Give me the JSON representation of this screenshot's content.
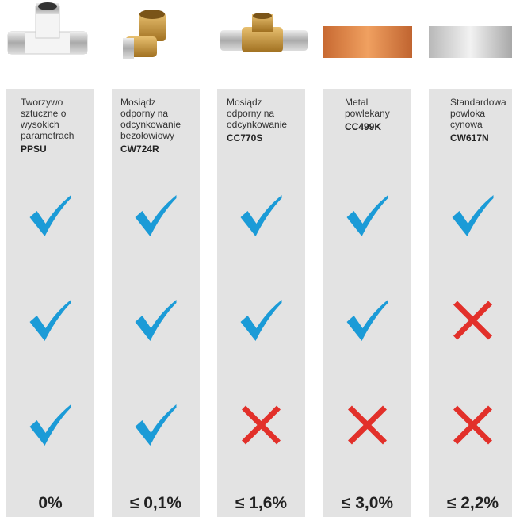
{
  "columns": [
    {
      "description": [
        "Tworzywo",
        "sztuczne o",
        "wysokich",
        "parametrach"
      ],
      "code": "PPSU",
      "checks": [
        true,
        true,
        true
      ],
      "value": "0%"
    },
    {
      "description": [
        "Mosiądz",
        "odporny na",
        "odcynkowanie",
        "bezołowiowy"
      ],
      "code": "CW724R",
      "checks": [
        true,
        true,
        true
      ],
      "value": "≤ 0,1%"
    },
    {
      "description": [
        "Mosiądz",
        "odporny na",
        "odcynkowanie"
      ],
      "code": "CC770S",
      "checks": [
        true,
        true,
        false
      ],
      "value": "≤ 1,6%"
    },
    {
      "description": [
        "Metal",
        "powlekany"
      ],
      "code": "CC499K",
      "checks": [
        true,
        true,
        false
      ],
      "value": "≤ 3,0%"
    },
    {
      "description": [
        "Standardowa",
        "powłoka",
        "cynowa"
      ],
      "code": "CW617N",
      "checks": [
        true,
        false,
        false
      ],
      "value": "≤ 2,2%"
    }
  ]
}
